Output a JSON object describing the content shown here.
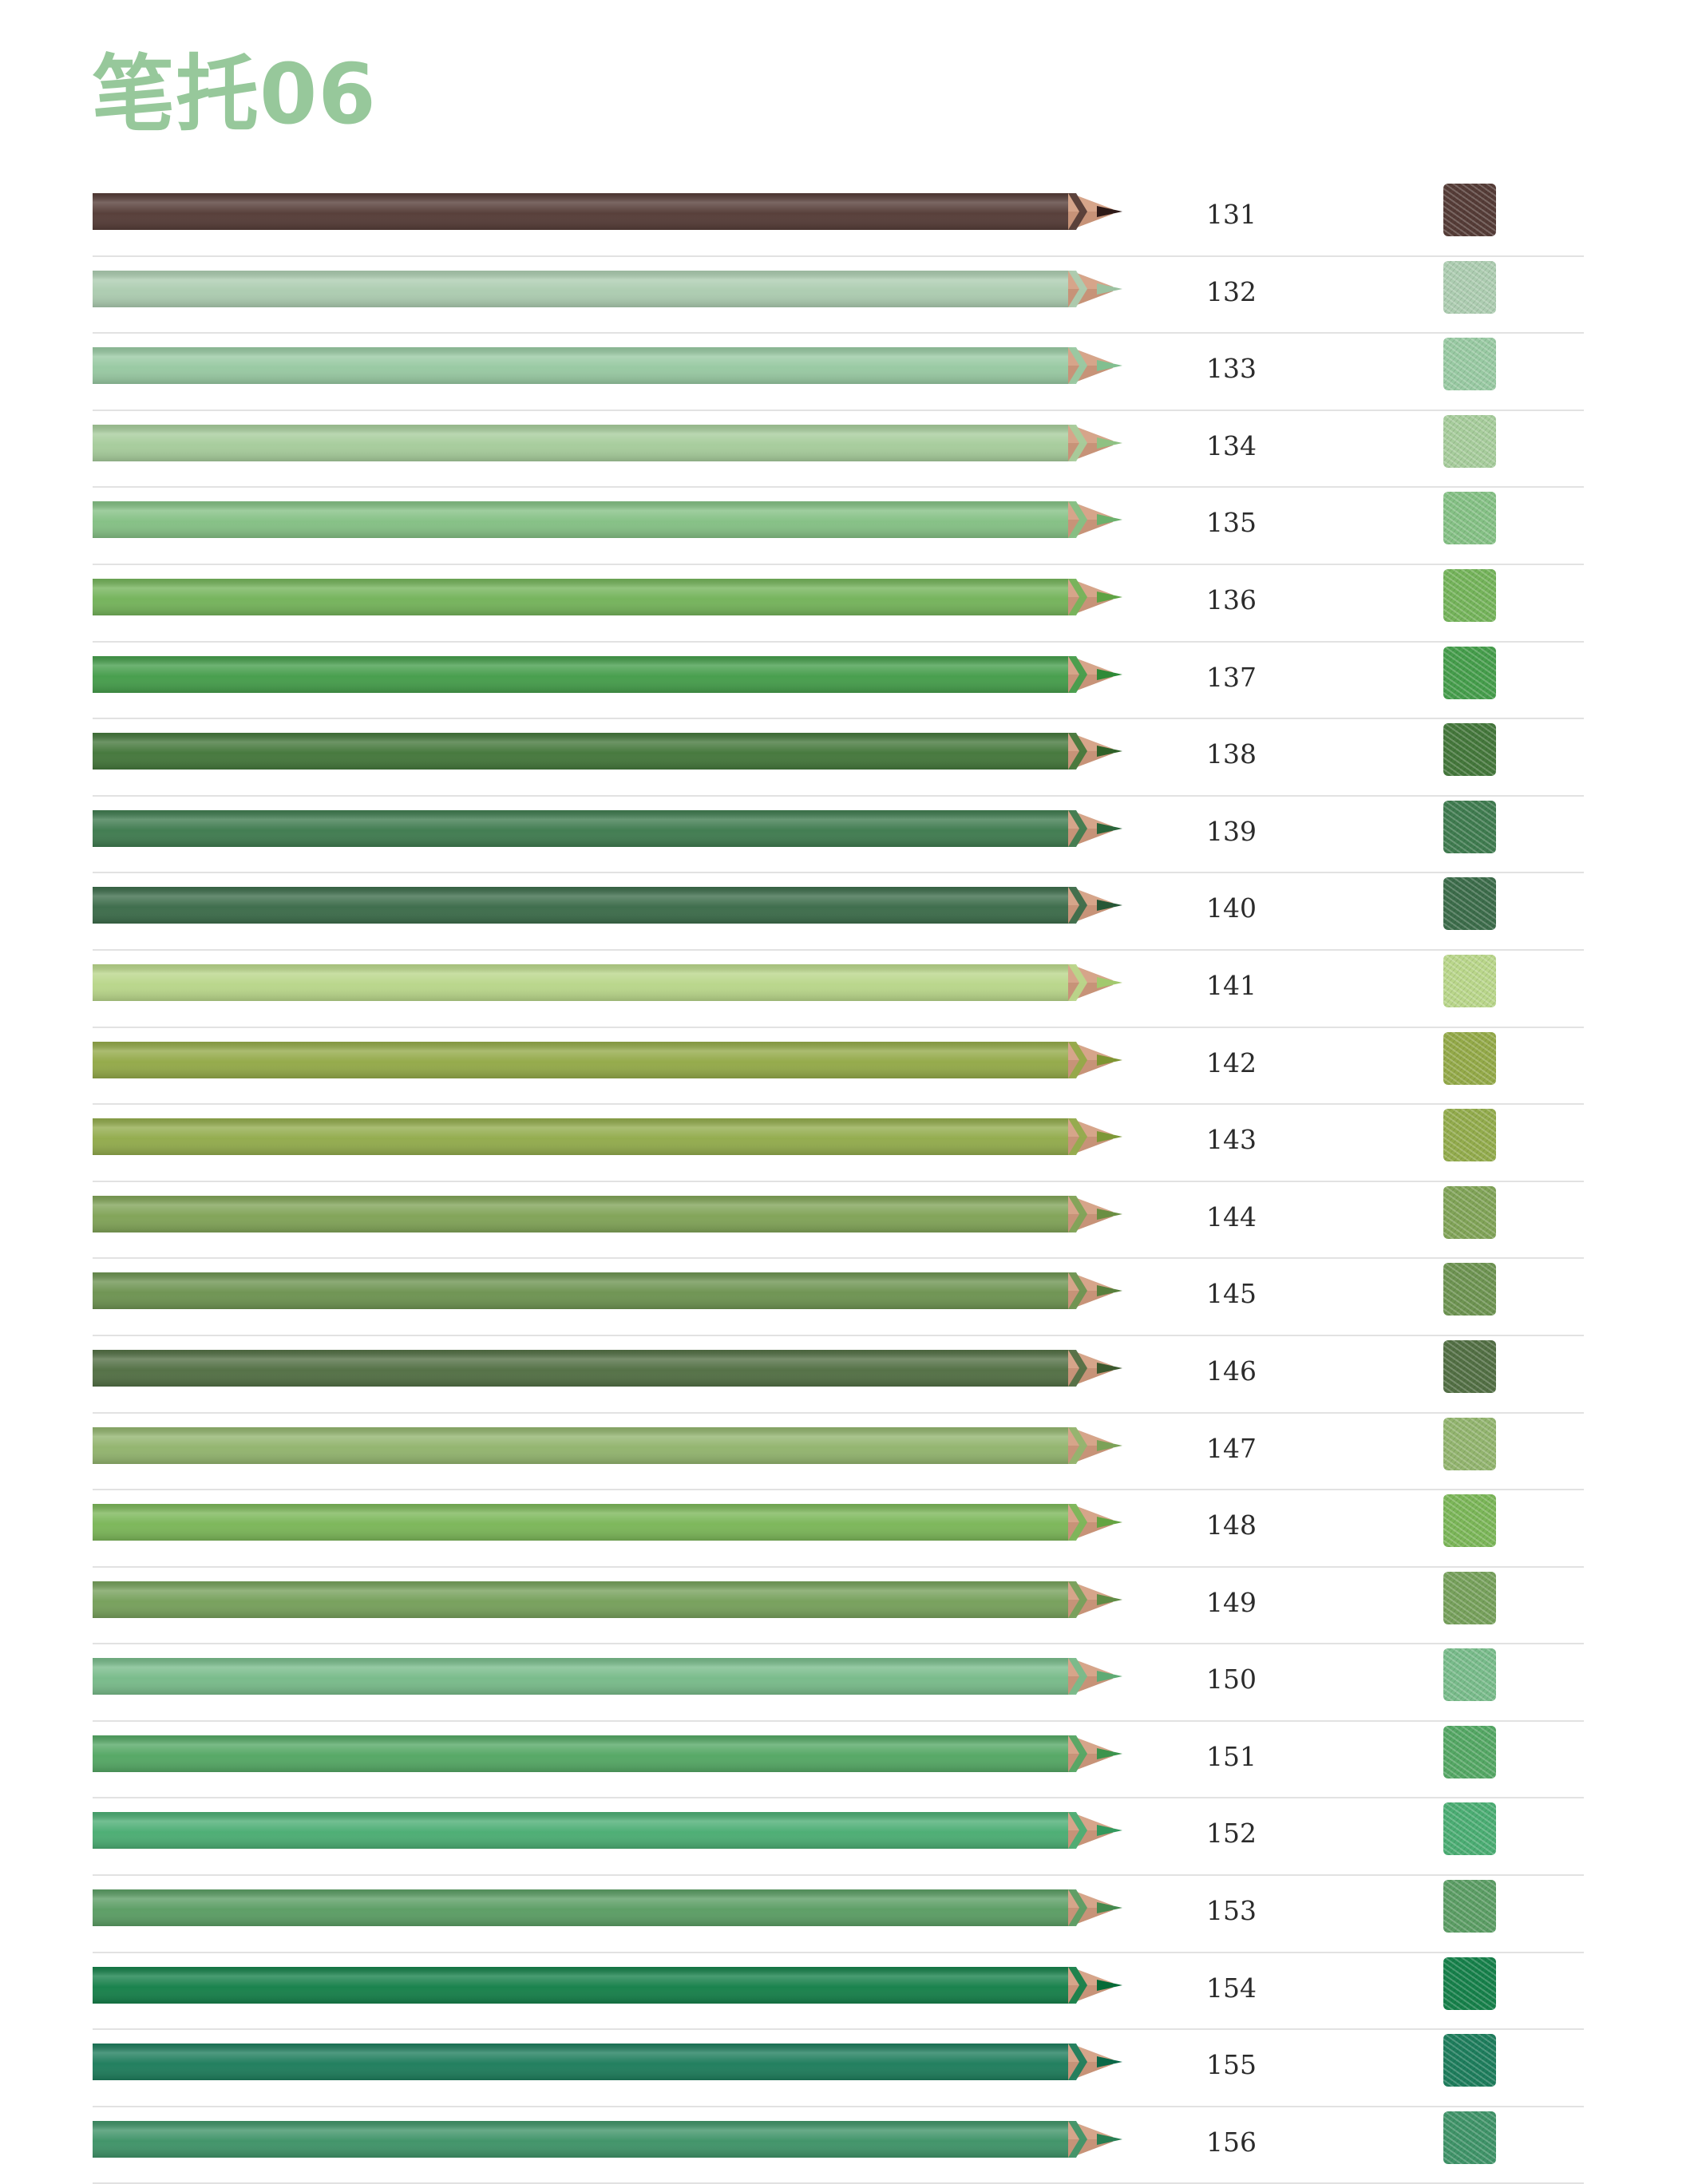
{
  "title": "笔托06",
  "pencils": [
    {
      "number": "131",
      "color": "#553c37",
      "tip": "#2e1a18"
    },
    {
      "number": "132",
      "color": "#acccb0",
      "tip": "#9cc2a1"
    },
    {
      "number": "133",
      "color": "#98c9a2",
      "tip": "#82bf90"
    },
    {
      "number": "134",
      "color": "#a6cc9b",
      "tip": "#8fc183"
    },
    {
      "number": "135",
      "color": "#84c084",
      "tip": "#6cb16c"
    },
    {
      "number": "136",
      "color": "#74b35a",
      "tip": "#5ea344"
    },
    {
      "number": "137",
      "color": "#459d4b",
      "tip": "#2f8a37"
    },
    {
      "number": "138",
      "color": "#44773b",
      "tip": "#2f6128"
    },
    {
      "number": "139",
      "color": "#3f7b4f",
      "tip": "#2a653a"
    },
    {
      "number": "140",
      "color": "#3c6c4a",
      "tip": "#275736"
    },
    {
      "number": "141",
      "color": "#b9d68a",
      "tip": "#a2c96e"
    },
    {
      "number": "142",
      "color": "#93a948",
      "tip": "#7e9532"
    },
    {
      "number": "143",
      "color": "#92ab4c",
      "tip": "#7d9837"
    },
    {
      "number": "144",
      "color": "#80a357",
      "tip": "#6b8f42"
    },
    {
      "number": "145",
      "color": "#6d9351",
      "tip": "#587f3c"
    },
    {
      "number": "146",
      "color": "#526f44",
      "tip": "#3c592e"
    },
    {
      "number": "147",
      "color": "#92b46e",
      "tip": "#7ca258"
    },
    {
      "number": "148",
      "color": "#7bb658",
      "tip": "#64a442"
    },
    {
      "number": "149",
      "color": "#76a05b",
      "tip": "#608c45"
    },
    {
      "number": "150",
      "color": "#78bb8a",
      "tip": "#5fab74"
    },
    {
      "number": "151",
      "color": "#54a764",
      "tip": "#3c944d"
    },
    {
      "number": "152",
      "color": "#4bad73",
      "tip": "#33995d"
    },
    {
      "number": "153",
      "color": "#5b9d64",
      "tip": "#448a4e"
    },
    {
      "number": "154",
      "color": "#16804a",
      "tip": "#066b37"
    },
    {
      "number": "155",
      "color": "#1e7d5c",
      "tip": "#0b6848"
    },
    {
      "number": "156",
      "color": "#3f9368",
      "tip": "#287f53"
    }
  ]
}
